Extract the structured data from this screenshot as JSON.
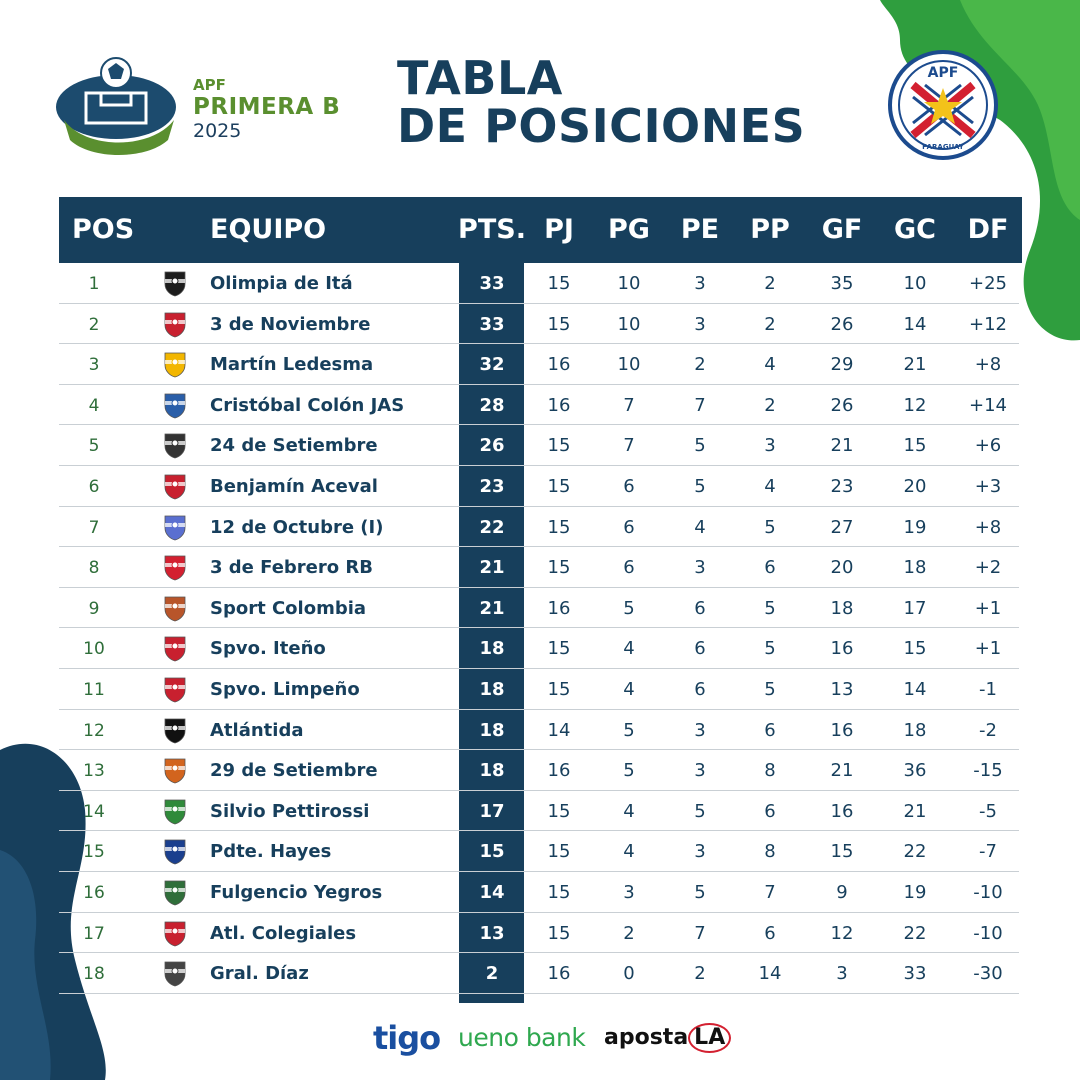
{
  "league": {
    "apf": "APF",
    "name": "PRIMERA B",
    "year": "2025"
  },
  "title": {
    "line1": "TABLA",
    "line2": "DE POSICIONES"
  },
  "crest": {
    "top": "APF",
    "bottom": "PARAGUAY"
  },
  "colors": {
    "navy": "#173f5c",
    "green": "#2f8a3a",
    "pos_text": "#2f6e3a"
  },
  "table": {
    "headers": [
      "POS",
      "EQUIPO",
      "PTS.",
      "PJ",
      "PG",
      "PE",
      "PP",
      "GF",
      "GC",
      "DF"
    ],
    "rows": [
      {
        "pos": "1",
        "team": "Olimpia de Itá",
        "pts": "33",
        "pj": "15",
        "pg": "10",
        "pe": "3",
        "pp": "2",
        "gf": "35",
        "gc": "10",
        "df": "+25",
        "icon": "crest-olimpia-icon"
      },
      {
        "pos": "2",
        "team": "3 de Noviembre",
        "pts": "33",
        "pj": "15",
        "pg": "10",
        "pe": "3",
        "pp": "2",
        "gf": "26",
        "gc": "14",
        "df": "+12",
        "icon": "crest-3-noviembre-icon"
      },
      {
        "pos": "3",
        "team": "Martín Ledesma",
        "pts": "32",
        "pj": "16",
        "pg": "10",
        "pe": "2",
        "pp": "4",
        "gf": "29",
        "gc": "21",
        "df": "+8",
        "icon": "crest-martin-ledesma-icon"
      },
      {
        "pos": "4",
        "team": "Cristóbal Colón JAS",
        "pts": "28",
        "pj": "16",
        "pg": "7",
        "pe": "7",
        "pp": "2",
        "gf": "26",
        "gc": "12",
        "df": "+14",
        "icon": "crest-cristobal-colon-icon"
      },
      {
        "pos": "5",
        "team": "24 de Setiembre",
        "pts": "26",
        "pj": "15",
        "pg": "7",
        "pe": "5",
        "pp": "3",
        "gf": "21",
        "gc": "15",
        "df": "+6",
        "icon": "crest-24-setiembre-icon"
      },
      {
        "pos": "6",
        "team": "Benjamín Aceval",
        "pts": "23",
        "pj": "15",
        "pg": "6",
        "pe": "5",
        "pp": "4",
        "gf": "23",
        "gc": "20",
        "df": "+3",
        "icon": "crest-benjamin-aceval-icon"
      },
      {
        "pos": "7",
        "team": "12 de Octubre (I)",
        "pts": "22",
        "pj": "15",
        "pg": "6",
        "pe": "4",
        "pp": "5",
        "gf": "27",
        "gc": "19",
        "df": "+8",
        "icon": "crest-12-octubre-icon"
      },
      {
        "pos": "8",
        "team": "3 de Febrero RB",
        "pts": "21",
        "pj": "15",
        "pg": "6",
        "pe": "3",
        "pp": "6",
        "gf": "20",
        "gc": "18",
        "df": "+2",
        "icon": "crest-3-febrero-icon"
      },
      {
        "pos": "9",
        "team": "Sport Colombia",
        "pts": "21",
        "pj": "16",
        "pg": "5",
        "pe": "6",
        "pp": "5",
        "gf": "18",
        "gc": "17",
        "df": "+1",
        "icon": "crest-sport-colombia-icon"
      },
      {
        "pos": "10",
        "team": "Spvo. Iteño",
        "pts": "18",
        "pj": "15",
        "pg": "4",
        "pe": "6",
        "pp": "5",
        "gf": "16",
        "gc": "15",
        "df": "+1",
        "icon": "crest-spvo-iteno-icon"
      },
      {
        "pos": "11",
        "team": "Spvo. Limpeño",
        "pts": "18",
        "pj": "15",
        "pg": "4",
        "pe": "6",
        "pp": "5",
        "gf": "13",
        "gc": "14",
        "df": "-1",
        "icon": "crest-spvo-limpeno-icon"
      },
      {
        "pos": "12",
        "team": "Atlántida",
        "pts": "18",
        "pj": "14",
        "pg": "5",
        "pe": "3",
        "pp": "6",
        "gf": "16",
        "gc": "18",
        "df": "-2",
        "icon": "crest-atlantida-icon"
      },
      {
        "pos": "13",
        "team": "29 de Setiembre",
        "pts": "18",
        "pj": "16",
        "pg": "5",
        "pe": "3",
        "pp": "8",
        "gf": "21",
        "gc": "36",
        "df": "-15",
        "icon": "crest-29-setiembre-icon"
      },
      {
        "pos": "14",
        "team": "Silvio Pettirossi",
        "pts": "17",
        "pj": "15",
        "pg": "4",
        "pe": "5",
        "pp": "6",
        "gf": "16",
        "gc": "21",
        "df": "-5",
        "icon": "crest-silvio-pettirossi-icon"
      },
      {
        "pos": "15",
        "team": "Pdte. Hayes",
        "pts": "15",
        "pj": "15",
        "pg": "4",
        "pe": "3",
        "pp": "8",
        "gf": "15",
        "gc": "22",
        "df": "-7",
        "icon": "crest-pdte-hayes-icon"
      },
      {
        "pos": "16",
        "team": "Fulgencio Yegros",
        "pts": "14",
        "pj": "15",
        "pg": "3",
        "pe": "5",
        "pp": "7",
        "gf": "9",
        "gc": "19",
        "df": "-10",
        "icon": "crest-fulgencio-yegros-icon"
      },
      {
        "pos": "17",
        "team": "Atl. Colegiales",
        "pts": "13",
        "pj": "15",
        "pg": "2",
        "pe": "7",
        "pp": "6",
        "gf": "12",
        "gc": "22",
        "df": "-10",
        "icon": "crest-atl-colegiales-icon"
      },
      {
        "pos": "18",
        "team": "Gral. Díaz",
        "pts": "2",
        "pj": "16",
        "pg": "0",
        "pe": "2",
        "pp": "14",
        "gf": "3",
        "gc": "33",
        "df": "-30",
        "icon": "crest-gral-diaz-icon"
      }
    ]
  },
  "sponsors": {
    "tigo": "tigo",
    "ueno": "ueno bank",
    "aposta": "aposta",
    "aposta_la": "LA"
  }
}
